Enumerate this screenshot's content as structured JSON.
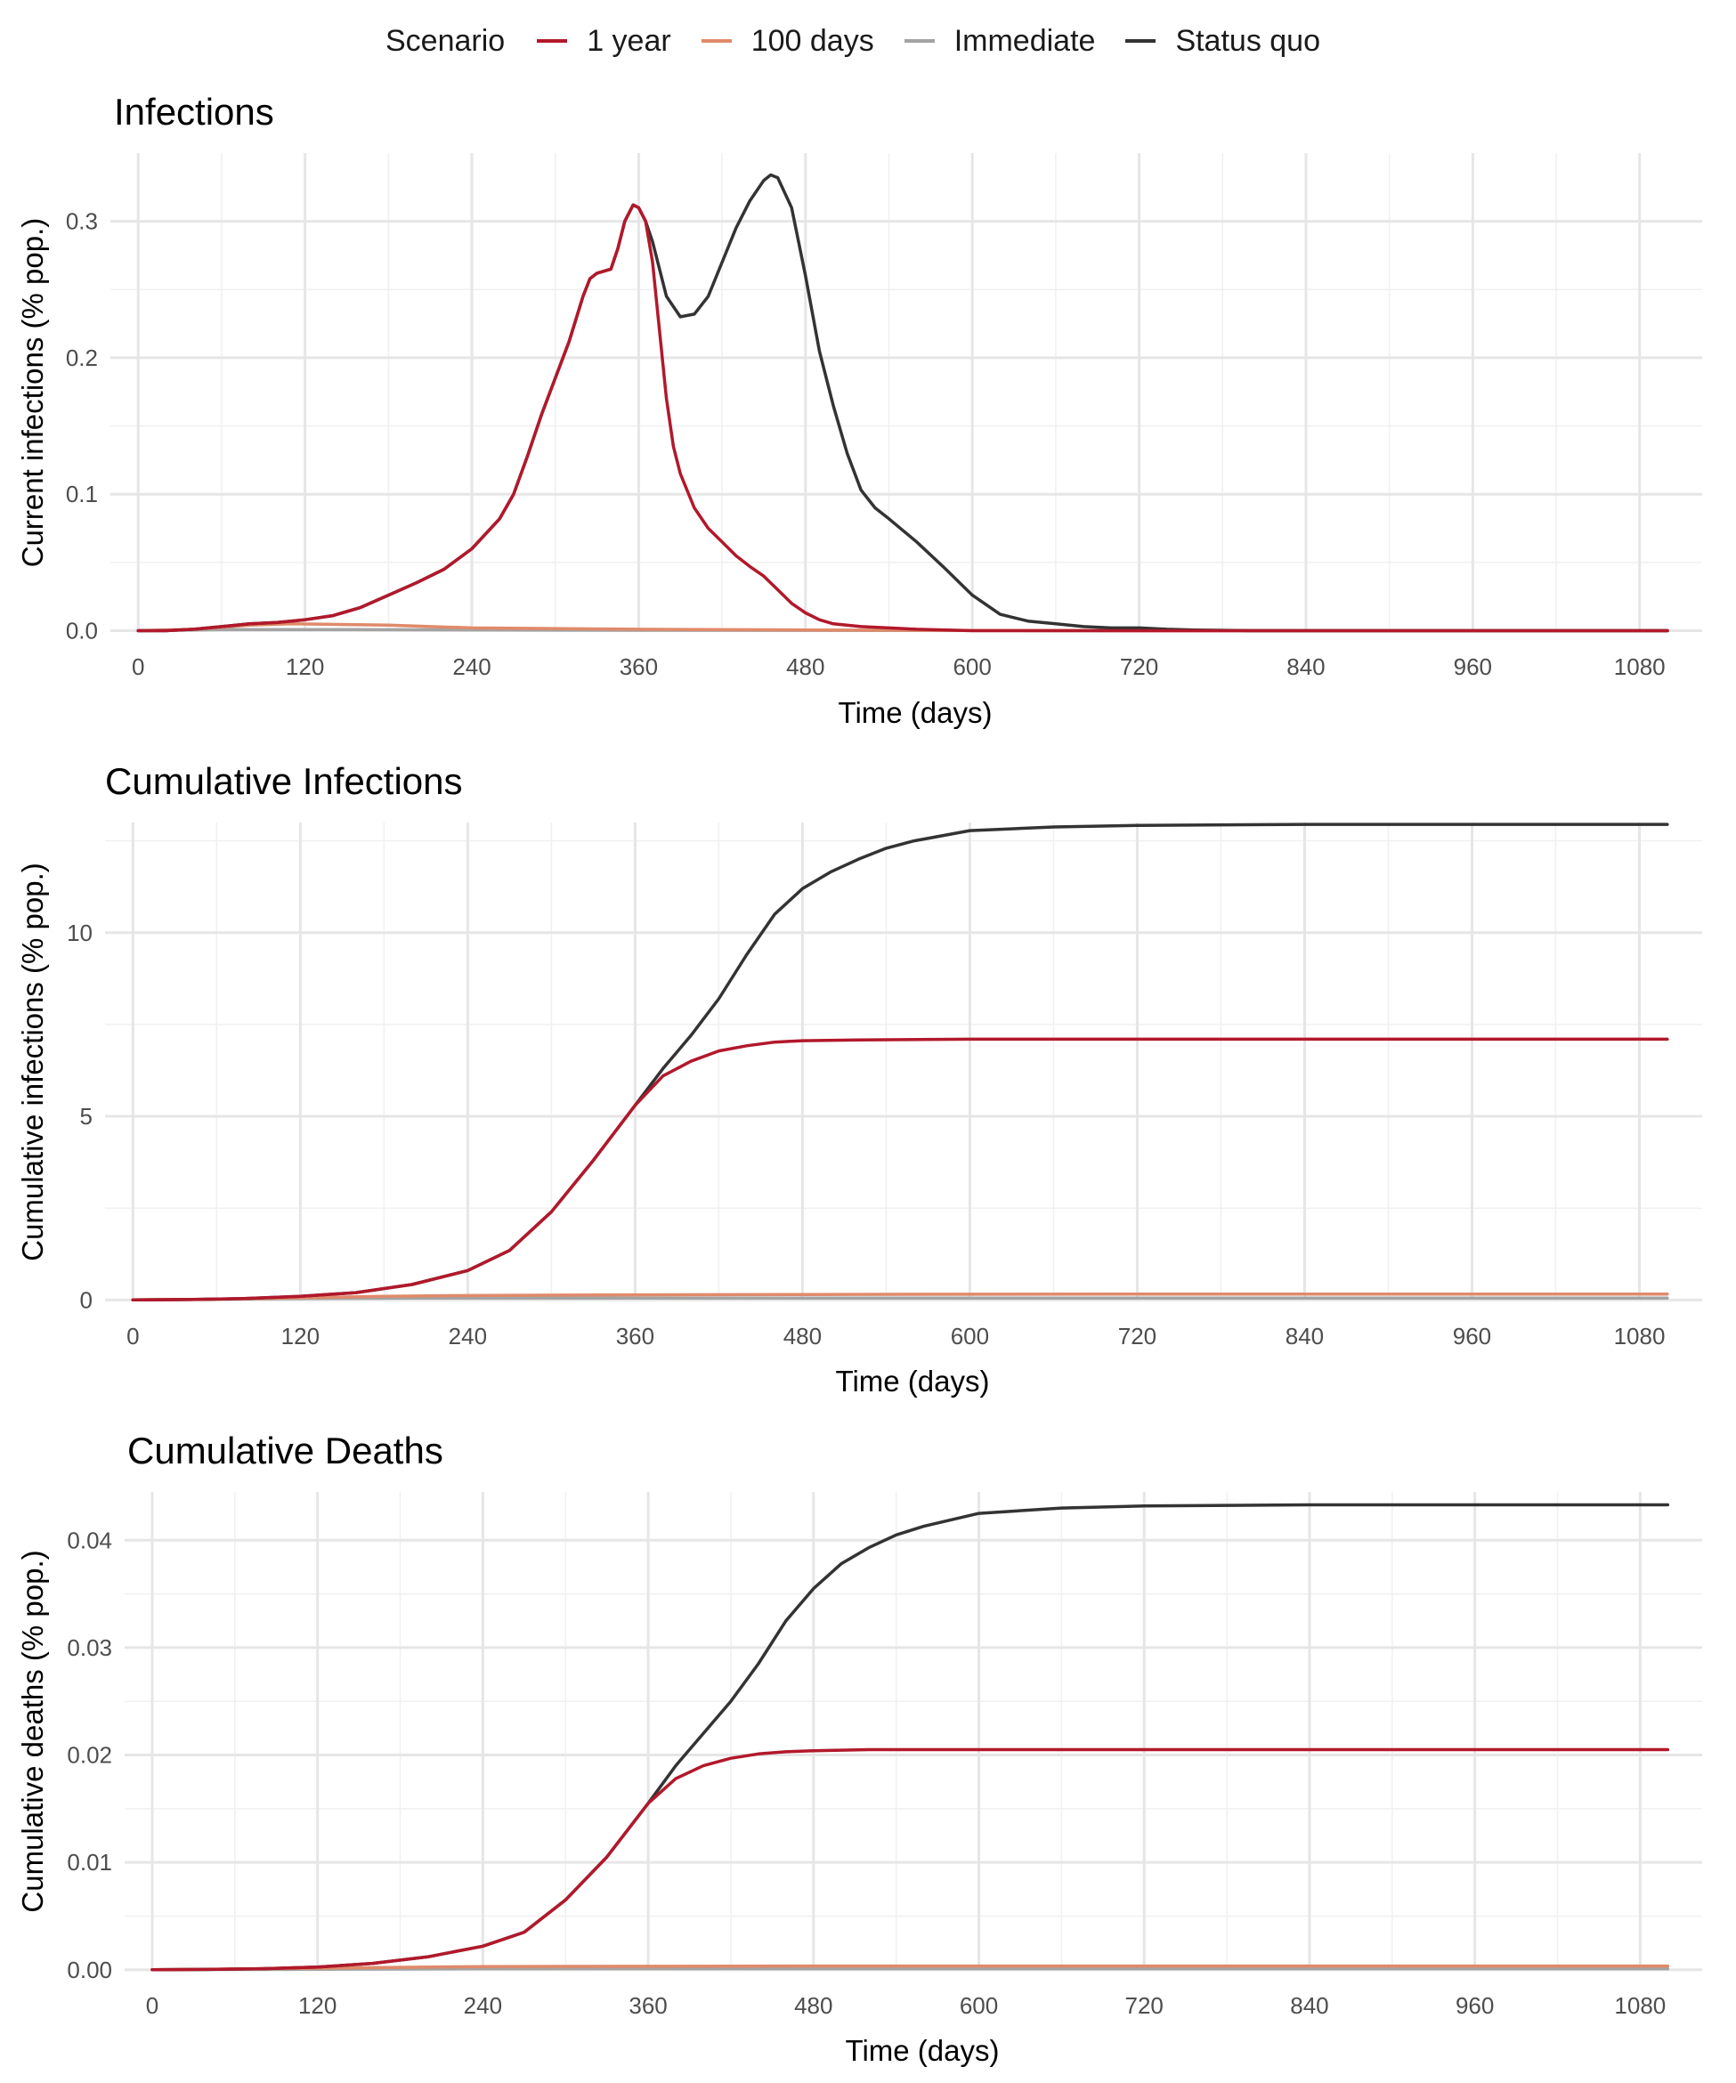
{
  "legend": {
    "title": "Scenario",
    "items": [
      {
        "label": "1 year",
        "color": "#b2182b"
      },
      {
        "label": "100 days",
        "color": "#e08a6a"
      },
      {
        "label": "Immediate",
        "color": "#a3a3a3"
      },
      {
        "label": "Status quo",
        "color": "#333333"
      }
    ]
  },
  "chart_data": [
    {
      "type": "line",
      "title": "Infections",
      "xlabel": "Time (days)",
      "ylabel": "Current infections (% pop.)",
      "xlim": [
        -20,
        1125
      ],
      "ylim": [
        -0.001,
        0.35
      ],
      "xticks": [
        0,
        120,
        240,
        360,
        480,
        600,
        720,
        840,
        960,
        1080
      ],
      "yticks": [
        0,
        0.1,
        0.2,
        0.3
      ],
      "yticklabels": [
        "0.0",
        "0.1",
        "0.2",
        "0.3"
      ],
      "grid": true,
      "legend": "top",
      "series": [
        {
          "name": "Immediate",
          "color": "#a3a3a3",
          "x": [
            0,
            60,
            120,
            360,
            720,
            1100
          ],
          "y": [
            0,
            0.0008,
            0.0008,
            0.0003,
            0,
            0
          ]
        },
        {
          "name": "100 days",
          "color": "#e08a6a",
          "x": [
            0,
            40,
            80,
            110,
            180,
            240,
            360,
            480,
            600,
            720,
            1100
          ],
          "y": [
            0,
            0.001,
            0.004,
            0.005,
            0.004,
            0.002,
            0.001,
            0.0005,
            0.0002,
            0,
            0
          ]
        },
        {
          "name": "Status quo",
          "color": "#333333",
          "x": [
            0,
            20,
            40,
            60,
            80,
            100,
            120,
            140,
            160,
            180,
            200,
            220,
            240,
            260,
            270,
            280,
            290,
            300,
            310,
            320,
            325,
            330,
            340,
            345,
            350,
            356,
            360,
            365,
            370,
            380,
            390,
            400,
            410,
            420,
            430,
            440,
            450,
            455,
            460,
            470,
            480,
            490,
            500,
            510,
            520,
            530,
            540,
            560,
            580,
            600,
            620,
            640,
            660,
            680,
            700,
            720,
            740,
            760,
            800,
            900,
            1000,
            1100
          ],
          "y": [
            0,
            0,
            0.001,
            0.003,
            0.005,
            0.006,
            0.008,
            0.011,
            0.017,
            0.026,
            0.035,
            0.045,
            0.06,
            0.082,
            0.1,
            0.128,
            0.158,
            0.185,
            0.212,
            0.245,
            0.258,
            0.262,
            0.265,
            0.28,
            0.3,
            0.312,
            0.31,
            0.3,
            0.285,
            0.245,
            0.23,
            0.232,
            0.245,
            0.27,
            0.295,
            0.315,
            0.33,
            0.334,
            0.332,
            0.31,
            0.26,
            0.205,
            0.165,
            0.13,
            0.103,
            0.09,
            0.082,
            0.065,
            0.046,
            0.026,
            0.012,
            0.007,
            0.005,
            0.003,
            0.002,
            0.002,
            0.001,
            0.0005,
            0,
            0,
            0,
            0
          ]
        },
        {
          "name": "1 year",
          "color": "#b2182b",
          "x": [
            0,
            20,
            40,
            60,
            80,
            100,
            120,
            140,
            160,
            180,
            200,
            220,
            240,
            260,
            270,
            280,
            290,
            300,
            310,
            320,
            325,
            330,
            340,
            345,
            350,
            356,
            360,
            365,
            370,
            375,
            380,
            385,
            390,
            400,
            410,
            420,
            430,
            440,
            450,
            460,
            470,
            480,
            490,
            500,
            520,
            540,
            560,
            600,
            700,
            800,
            1100
          ],
          "y": [
            0,
            0,
            0.001,
            0.003,
            0.005,
            0.006,
            0.008,
            0.011,
            0.017,
            0.026,
            0.035,
            0.045,
            0.06,
            0.082,
            0.1,
            0.128,
            0.158,
            0.185,
            0.212,
            0.245,
            0.258,
            0.262,
            0.265,
            0.28,
            0.3,
            0.312,
            0.31,
            0.3,
            0.27,
            0.22,
            0.17,
            0.135,
            0.115,
            0.09,
            0.075,
            0.065,
            0.055,
            0.047,
            0.04,
            0.03,
            0.02,
            0.013,
            0.008,
            0.005,
            0.003,
            0.002,
            0.001,
            0,
            0,
            0,
            0
          ]
        }
      ]
    },
    {
      "type": "line",
      "title": "Cumulative Infections",
      "xlabel": "Time (days)",
      "ylabel": "Cumulative infections (% pop.)",
      "xlim": [
        -20,
        1125
      ],
      "ylim": [
        -0.04,
        13.0
      ],
      "xticks": [
        0,
        120,
        240,
        360,
        480,
        600,
        720,
        840,
        960,
        1080
      ],
      "yticks": [
        0,
        5,
        10
      ],
      "yticklabels": [
        "0",
        "5",
        "10"
      ],
      "grid": true,
      "legend": "top",
      "series": [
        {
          "name": "Immediate",
          "color": "#a3a3a3",
          "x": [
            0,
            60,
            120,
            200,
            400,
            1100
          ],
          "y": [
            0,
            0.02,
            0.04,
            0.05,
            0.05,
            0.05
          ]
        },
        {
          "name": "100 days",
          "color": "#e08a6a",
          "x": [
            0,
            60,
            120,
            180,
            240,
            360,
            480,
            720,
            1100
          ],
          "y": [
            0,
            0.02,
            0.06,
            0.1,
            0.12,
            0.14,
            0.15,
            0.16,
            0.16
          ]
        },
        {
          "name": "Status quo",
          "color": "#333333",
          "x": [
            0,
            40,
            80,
            120,
            160,
            200,
            240,
            270,
            300,
            330,
            360,
            380,
            400,
            420,
            440,
            460,
            480,
            500,
            520,
            540,
            560,
            600,
            660,
            720,
            840,
            1100
          ],
          "y": [
            0,
            0.01,
            0.04,
            0.1,
            0.2,
            0.42,
            0.8,
            1.35,
            2.4,
            3.8,
            5.3,
            6.3,
            7.2,
            8.2,
            9.4,
            10.5,
            11.2,
            11.65,
            12.0,
            12.3,
            12.5,
            12.78,
            12.88,
            12.92,
            12.95,
            12.95
          ]
        },
        {
          "name": "1 year",
          "color": "#b2182b",
          "x": [
            0,
            40,
            80,
            120,
            160,
            200,
            240,
            270,
            300,
            330,
            360,
            380,
            400,
            420,
            440,
            460,
            480,
            520,
            600,
            700,
            1100
          ],
          "y": [
            0,
            0.01,
            0.04,
            0.1,
            0.2,
            0.42,
            0.8,
            1.35,
            2.4,
            3.8,
            5.3,
            6.1,
            6.5,
            6.78,
            6.92,
            7.02,
            7.06,
            7.08,
            7.1,
            7.1,
            7.1
          ]
        }
      ]
    },
    {
      "type": "line",
      "title": "Cumulative Deaths",
      "xlabel": "Time (days)",
      "ylabel": "Cumulative deaths (% pop.)",
      "xlim": [
        -20,
        1125
      ],
      "ylim": [
        -0.0001,
        0.0445
      ],
      "xticks": [
        0,
        120,
        240,
        360,
        480,
        600,
        720,
        840,
        960,
        1080
      ],
      "yticks": [
        0,
        0.01,
        0.02,
        0.03,
        0.04
      ],
      "yticklabels": [
        "0.00",
        "0.01",
        "0.02",
        "0.03",
        "0.04"
      ],
      "grid": true,
      "legend": "top",
      "series": [
        {
          "name": "Immediate",
          "color": "#a3a3a3",
          "x": [
            0,
            120,
            240,
            480,
            1100
          ],
          "y": [
            0,
            5e-05,
            0.0001,
            0.0001,
            0.0001
          ]
        },
        {
          "name": "100 days",
          "color": "#e08a6a",
          "x": [
            0,
            120,
            240,
            480,
            1100
          ],
          "y": [
            0,
            0.00015,
            0.0003,
            0.00035,
            0.00035
          ]
        },
        {
          "name": "Status quo",
          "color": "#333333",
          "x": [
            0,
            40,
            80,
            120,
            160,
            200,
            240,
            270,
            300,
            330,
            360,
            380,
            400,
            420,
            440,
            460,
            480,
            500,
            520,
            540,
            560,
            600,
            660,
            720,
            840,
            1100
          ],
          "y": [
            0,
            3e-05,
            0.0001,
            0.00025,
            0.0006,
            0.0012,
            0.0022,
            0.0035,
            0.0065,
            0.0105,
            0.0155,
            0.019,
            0.022,
            0.025,
            0.0285,
            0.0325,
            0.0355,
            0.0378,
            0.0393,
            0.0405,
            0.0413,
            0.0425,
            0.043,
            0.0432,
            0.0433,
            0.0433
          ]
        },
        {
          "name": "1 year",
          "color": "#b2182b",
          "x": [
            0,
            40,
            80,
            120,
            160,
            200,
            240,
            270,
            300,
            330,
            360,
            380,
            400,
            420,
            440,
            460,
            480,
            520,
            600,
            700,
            1100
          ],
          "y": [
            0,
            3e-05,
            0.0001,
            0.00025,
            0.0006,
            0.0012,
            0.0022,
            0.0035,
            0.0065,
            0.0105,
            0.0155,
            0.0178,
            0.019,
            0.0197,
            0.0201,
            0.0203,
            0.0204,
            0.0205,
            0.0205,
            0.0205,
            0.0205
          ]
        }
      ]
    }
  ]
}
